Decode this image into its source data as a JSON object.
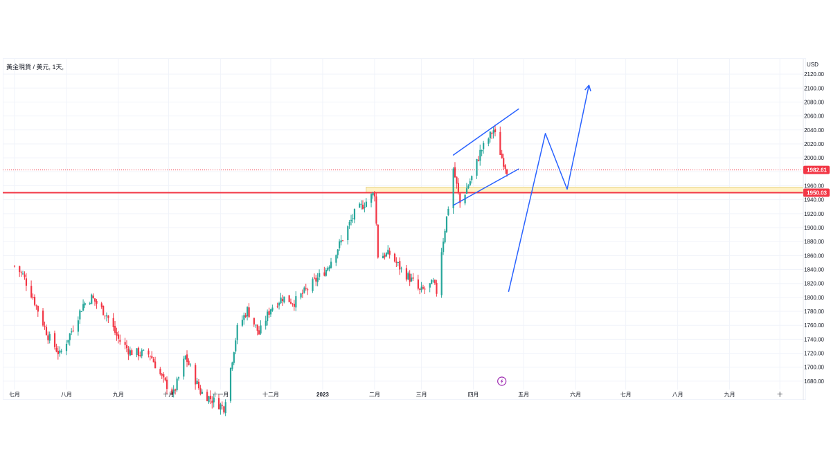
{
  "symbol": {
    "title": "黃金現貨 / 美元, 1天,",
    "currency": "USD"
  },
  "price_tags": {
    "last": "1982.61",
    "level": "1950.03"
  },
  "colors": {
    "up": "#26a69a",
    "down": "#f23645",
    "level_line": "#f23645",
    "zone_fill": "#fff2c6",
    "zone_border": "#e8d48a",
    "drawing": "#2962ff",
    "last_tag": "#f23645",
    "last_dotted": "#f23645",
    "grid": "#f0f3fa",
    "flash_icon": "#9c27b0"
  },
  "icons": {
    "events": "lightning-icon"
  },
  "chart_data": {
    "type": "candlestick",
    "title": "黃金現貨 / 美元, 1天,",
    "y_unit": "USD",
    "ylim": [
      1668,
      2132
    ],
    "y_ticks": [
      "2120.00",
      "2100.00",
      "2080.00",
      "2060.00",
      "2040.00",
      "2020.00",
      "2000.00",
      "1980.00",
      "1960.00",
      "1940.00",
      "1920.00",
      "1900.00",
      "1880.00",
      "1860.00",
      "1840.00",
      "1820.00",
      "1800.00",
      "1780.00",
      "1760.00",
      "1740.00",
      "1720.00",
      "1700.00",
      "1680.00"
    ],
    "x_tick_labels": [
      "七月",
      "八月",
      "九月",
      "十月",
      "十一月",
      "十二月",
      "2023",
      "二月",
      "三月",
      "四月",
      "五月",
      "六月",
      "七月",
      "八月",
      "九月",
      "十"
    ],
    "price_path": [
      {
        "date": "2022-07-01",
        "close": 1845
      },
      {
        "date": "2022-07-06",
        "close": 1832
      },
      {
        "date": "2022-07-12",
        "close": 1800
      },
      {
        "date": "2022-07-21",
        "close": 1745
      },
      {
        "date": "2022-07-28",
        "close": 1718
      },
      {
        "date": "2022-08-04",
        "close": 1752
      },
      {
        "date": "2022-08-11",
        "close": 1790
      },
      {
        "date": "2022-08-16",
        "close": 1800
      },
      {
        "date": "2022-08-25",
        "close": 1775
      },
      {
        "date": "2022-09-01",
        "close": 1740
      },
      {
        "date": "2022-09-08",
        "close": 1722
      },
      {
        "date": "2022-09-20",
        "close": 1718
      },
      {
        "date": "2022-09-28",
        "close": 1680
      },
      {
        "date": "2022-10-04",
        "close": 1662
      },
      {
        "date": "2022-10-11",
        "close": 1715
      },
      {
        "date": "2022-10-20",
        "close": 1665
      },
      {
        "date": "2022-11-01",
        "close": 1645
      },
      {
        "date": "2022-11-03",
        "close": 1642
      },
      {
        "date": "2022-11-11",
        "close": 1755
      },
      {
        "date": "2022-11-17",
        "close": 1782
      },
      {
        "date": "2022-11-24",
        "close": 1748
      },
      {
        "date": "2022-12-01",
        "close": 1785
      },
      {
        "date": "2022-12-08",
        "close": 1800
      },
      {
        "date": "2022-12-15",
        "close": 1793
      },
      {
        "date": "2022-12-22",
        "close": 1810
      },
      {
        "date": "2023-01-03",
        "close": 1840
      },
      {
        "date": "2023-01-12",
        "close": 1880
      },
      {
        "date": "2023-01-20",
        "close": 1920
      },
      {
        "date": "2023-01-26",
        "close": 1935
      },
      {
        "date": "2023-02-01",
        "close": 1950
      },
      {
        "date": "2023-02-03",
        "close": 1860
      },
      {
        "date": "2023-02-10",
        "close": 1862
      },
      {
        "date": "2023-02-17",
        "close": 1840
      },
      {
        "date": "2023-02-24",
        "close": 1822
      },
      {
        "date": "2023-02-28",
        "close": 1808
      },
      {
        "date": "2023-03-08",
        "close": 1820
      },
      {
        "date": "2023-03-10",
        "close": 1808
      },
      {
        "date": "2023-03-13",
        "close": 1868
      },
      {
        "date": "2023-03-17",
        "close": 1930
      },
      {
        "date": "2023-03-20",
        "close": 1985
      },
      {
        "date": "2023-03-24",
        "close": 1935
      },
      {
        "date": "2023-03-31",
        "close": 1972
      },
      {
        "date": "2023-04-05",
        "close": 2008
      },
      {
        "date": "2023-04-13",
        "close": 2040
      },
      {
        "date": "2023-04-18",
        "close": 2000
      },
      {
        "date": "2023-04-21",
        "close": 1983
      }
    ],
    "horizontal_level": 1950.03,
    "supply_zone": [
      1950.03,
      1958
    ],
    "channel_upper": [
      {
        "date": "2023-03-20",
        "price": 2004
      },
      {
        "date": "2023-04-28",
        "price": 2070
      }
    ],
    "channel_lower": [
      {
        "date": "2023-03-20",
        "price": 1932
      },
      {
        "date": "2023-04-28",
        "price": 1984
      }
    ],
    "projection_path": [
      {
        "date": "2023-04-22",
        "price": 1808
      },
      {
        "date": "2023-05-14",
        "price": 2035
      },
      {
        "date": "2023-05-27",
        "price": 1955
      },
      {
        "date": "2023-06-09",
        "price": 2104
      }
    ]
  }
}
